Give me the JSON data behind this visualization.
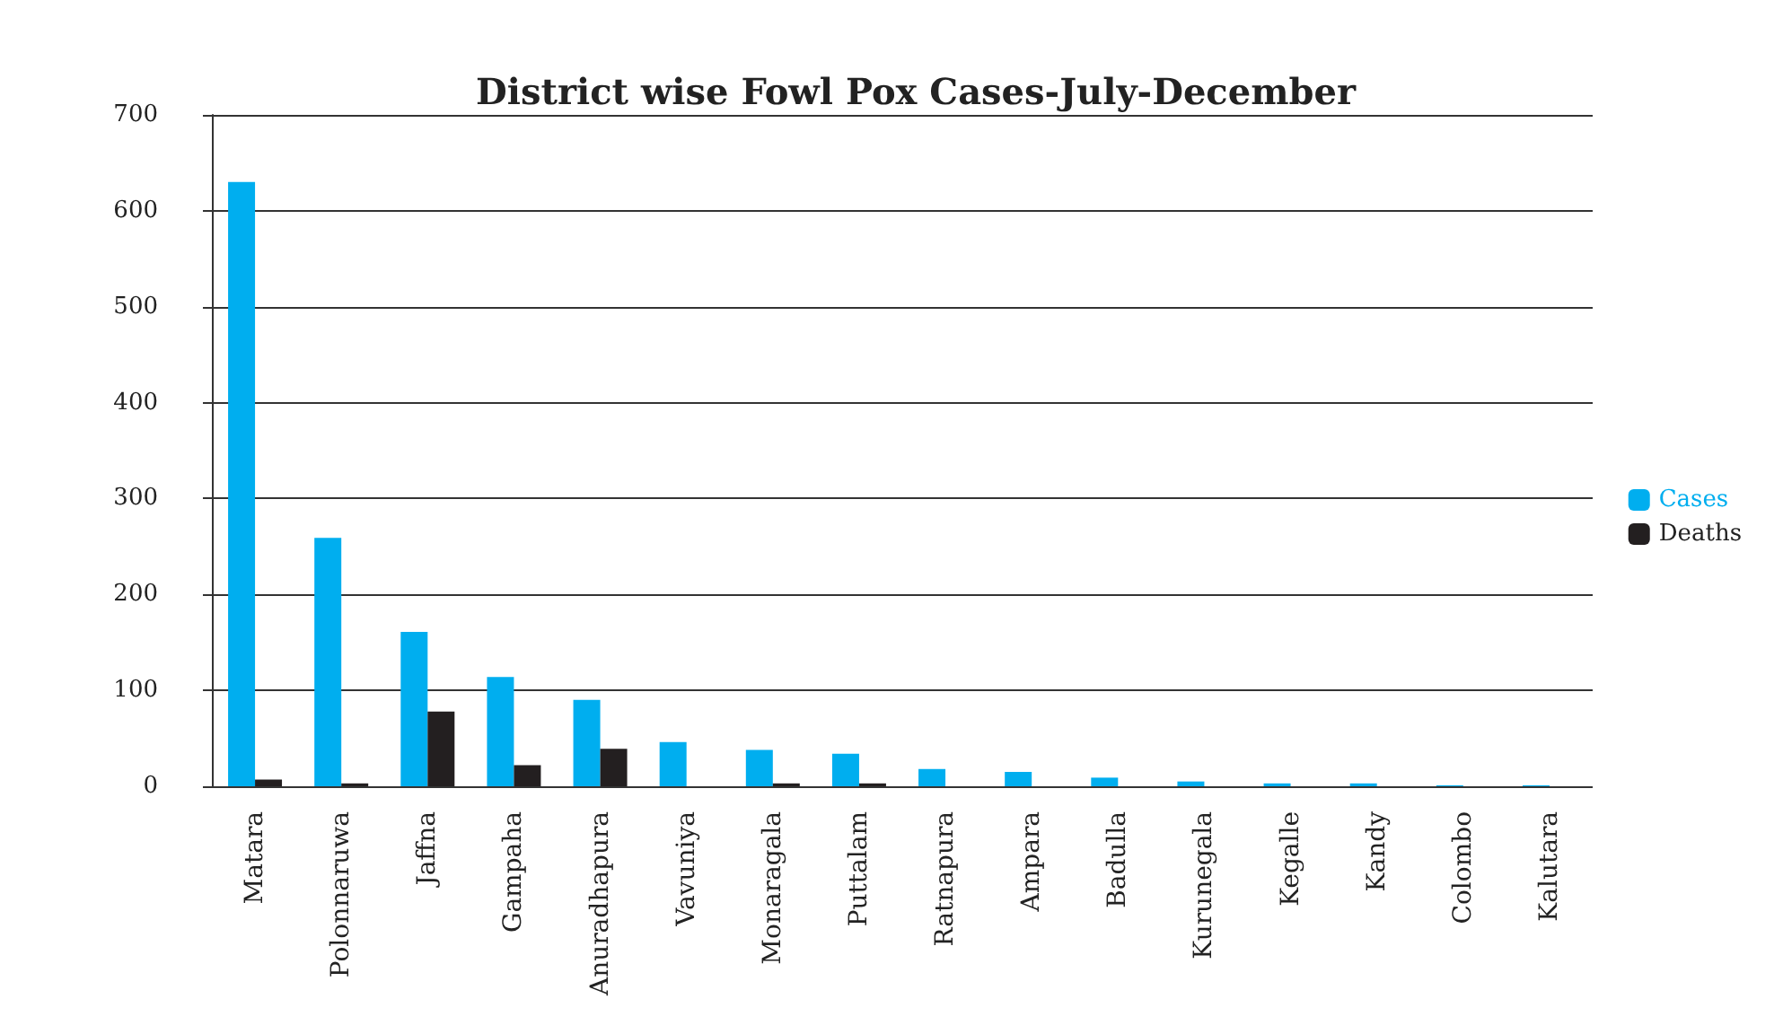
{
  "chart_data": {
    "type": "bar",
    "title": "District wise Fowl Pox Cases-July-December",
    "categories": [
      "Matara",
      "Polonnaruwa",
      "Jaffna",
      "Gampaha",
      "Anuradhapura",
      "Vavuniya",
      "Monaragala",
      "Puttalam",
      "Ratnapura",
      "Ampara",
      "Badulla",
      "Kurunegala",
      "Kegalle",
      "Kandy",
      "Colombo",
      "Kalutara"
    ],
    "series": [
      {
        "name": "Cases",
        "color": "#00aeef",
        "values": [
          630,
          259,
          161,
          114,
          90,
          46,
          38,
          34,
          18,
          15,
          9,
          5,
          3,
          3,
          1,
          1
        ]
      },
      {
        "name": "Deaths",
        "color": "#231f20",
        "values": [
          7,
          3,
          78,
          22,
          39,
          0,
          3,
          3,
          0,
          0,
          0,
          0,
          0,
          0,
          0,
          0
        ]
      }
    ],
    "ylim": [
      0,
      700
    ],
    "yticks": [
      0,
      100,
      200,
      300,
      400,
      500,
      600,
      700
    ],
    "grid": "y",
    "legend": "right"
  }
}
